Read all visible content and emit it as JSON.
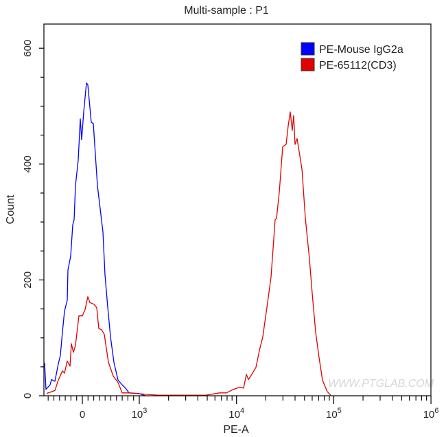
{
  "chart_data": {
    "type": "line",
    "title": "Multi-sample : P1",
    "xlabel": "PE-A",
    "ylabel": "Count",
    "x_scale": "biexponential",
    "xlim": [
      -700,
      1000000
    ],
    "ylim": [
      0,
      640
    ],
    "x_ticks": [
      {
        "value": 0,
        "label": "0",
        "sup": ""
      },
      {
        "value": 1000,
        "label": "10",
        "sup": "3"
      },
      {
        "value": 10000,
        "label": "10",
        "sup": "4"
      },
      {
        "value": 100000,
        "label": "10",
        "sup": "5"
      },
      {
        "value": 1000000,
        "label": "10",
        "sup": "6"
      }
    ],
    "y_ticks": [
      0,
      200,
      400,
      600
    ],
    "grid": false,
    "legend_position": "top-right",
    "series": [
      {
        "name": "PE-Mouse IgG2a",
        "color": "#0000ff",
        "points": [
          [
            -663,
            57
          ],
          [
            -639,
            11
          ],
          [
            -566,
            19
          ],
          [
            -542,
            28
          ],
          [
            -482,
            25
          ],
          [
            -422,
            55
          ],
          [
            -386,
            70
          ],
          [
            -349,
            110
          ],
          [
            -313,
            146
          ],
          [
            -265,
            165
          ],
          [
            -253,
            217
          ],
          [
            -205,
            241
          ],
          [
            -169,
            295
          ],
          [
            -145,
            304
          ],
          [
            -120,
            363
          ],
          [
            -72,
            407
          ],
          [
            -36,
            478
          ],
          [
            -12,
            442
          ],
          [
            24,
            490
          ],
          [
            72,
            540
          ],
          [
            96,
            537
          ],
          [
            157,
            472
          ],
          [
            193,
            470
          ],
          [
            265,
            363
          ],
          [
            361,
            283
          ],
          [
            398,
            209
          ],
          [
            446,
            153
          ],
          [
            494,
            102
          ],
          [
            554,
            58
          ],
          [
            627,
            27
          ],
          [
            699,
            19
          ],
          [
            759,
            13
          ],
          [
            819,
            5
          ],
          [
            988,
            4
          ],
          [
            1157,
            0
          ]
        ]
      },
      {
        "name": "PE-65112(CD3)",
        "color": "#e00000",
        "points": [
          [
            -627,
            4
          ],
          [
            -542,
            7
          ],
          [
            -482,
            9
          ],
          [
            -422,
            27
          ],
          [
            -349,
            43
          ],
          [
            -313,
            39
          ],
          [
            -265,
            60
          ],
          [
            -217,
            51
          ],
          [
            -193,
            90
          ],
          [
            -157,
            75
          ],
          [
            -120,
            87
          ],
          [
            -60,
            138
          ],
          [
            0,
            138
          ],
          [
            48,
            149
          ],
          [
            96,
            171
          ],
          [
            133,
            161
          ],
          [
            205,
            158
          ],
          [
            253,
            152
          ],
          [
            289,
            116
          ],
          [
            337,
            114
          ],
          [
            386,
            106
          ],
          [
            422,
            82
          ],
          [
            458,
            58
          ],
          [
            542,
            34
          ],
          [
            627,
            23
          ],
          [
            699,
            5
          ],
          [
            819,
            5
          ],
          [
            940,
            4
          ],
          [
            1551,
            1
          ],
          [
            4840,
            1
          ],
          [
            6690,
            5
          ],
          [
            7870,
            5
          ],
          [
            9270,
            11
          ],
          [
            10890,
            15
          ],
          [
            11830,
            13
          ],
          [
            12620,
            37
          ],
          [
            13250,
            28
          ],
          [
            14600,
            39
          ],
          [
            15840,
            49
          ],
          [
            17180,
            78
          ],
          [
            18630,
            102
          ],
          [
            20880,
            161
          ],
          [
            22650,
            205
          ],
          [
            24950,
            304
          ],
          [
            25780,
            306
          ],
          [
            27520,
            351
          ],
          [
            29850,
            430
          ],
          [
            32380,
            434
          ],
          [
            33990,
            466
          ],
          [
            35700,
            490
          ],
          [
            37470,
            458
          ],
          [
            38730,
            484
          ],
          [
            40000,
            434
          ],
          [
            41990,
            444
          ],
          [
            47090,
            391
          ],
          [
            51070,
            307
          ],
          [
            56260,
            236
          ],
          [
            60030,
            177
          ],
          [
            65130,
            110
          ],
          [
            70660,
            66
          ],
          [
            76550,
            27
          ],
          [
            85840,
            7
          ],
          [
            93100,
            1
          ]
        ]
      }
    ]
  },
  "watermark": "WWW.PTGLAB.COM"
}
